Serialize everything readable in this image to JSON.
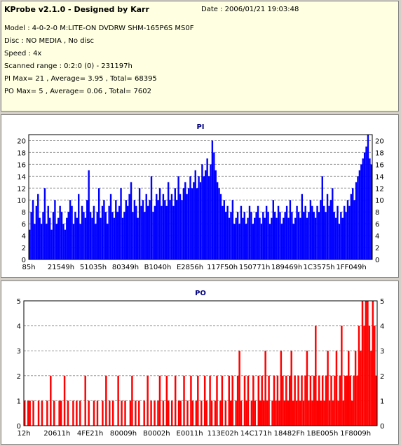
{
  "header": {
    "title": "KProbe v2.1.0 - Designed by Karr",
    "date": "Date : 2006/01/21 19:03:48",
    "model": "Model : 4-0-2-0 M:LITE-ON DVDRW SHM-165P6S MS0F",
    "disc": "Disc : NO MEDIA , No disc",
    "speed": "Speed : 4x",
    "scanned_range": "Scanned range : 0:2:0 (0) - 231197h",
    "pi_summary": "PI Max= 21 , Average= 3.95 , Total= 68395",
    "po_summary": "PO Max= 5 , Average= 0.06 , Total= 7602"
  },
  "colors": {
    "pi_bar": "#0000ff",
    "po_bar": "#ff0000",
    "title_text": "#000080",
    "grid": "#9a9a9a"
  },
  "chart_data": [
    {
      "id": "pi",
      "type": "bar",
      "title": "PI",
      "ylim": [
        0,
        21
      ],
      "y_ticks": [
        0,
        2,
        4,
        6,
        8,
        10,
        12,
        14,
        16,
        18,
        20
      ],
      "x_tick_labels": [
        "85h",
        "21549h",
        "51035h",
        "80349h",
        "B1040h",
        "E2856h",
        "117F50h",
        "150771h",
        "189469h",
        "1C3575h",
        "1FF049h"
      ],
      "grid": true,
      "series_color": "#0000ff",
      "values": [
        5,
        8,
        10,
        6,
        9,
        11,
        7,
        6,
        8,
        12,
        6,
        9,
        7,
        5,
        8,
        10,
        6,
        7,
        9,
        8,
        6,
        5,
        7,
        8,
        10,
        9,
        6,
        8,
        7,
        11,
        6,
        9,
        8,
        7,
        10,
        15,
        8,
        7,
        9,
        6,
        8,
        12,
        7,
        9,
        10,
        8,
        6,
        9,
        11,
        8,
        7,
        10,
        8,
        9,
        12,
        7,
        8,
        10,
        9,
        11,
        13,
        8,
        10,
        9,
        7,
        12,
        9,
        10,
        8,
        11,
        9,
        10,
        14,
        8,
        9,
        11,
        10,
        12,
        9,
        11,
        10,
        9,
        13,
        10,
        11,
        9,
        12,
        10,
        14,
        11,
        10,
        12,
        13,
        11,
        12,
        14,
        12,
        13,
        15,
        12,
        14,
        13,
        16,
        14,
        15,
        17,
        14,
        16,
        20,
        18,
        15,
        13,
        12,
        11,
        9,
        10,
        8,
        9,
        7,
        8,
        10,
        6,
        7,
        8,
        6,
        9,
        7,
        8,
        6,
        7,
        9,
        8,
        6,
        7,
        8,
        9,
        7,
        6,
        8,
        7,
        9,
        8,
        6,
        7,
        10,
        8,
        7,
        9,
        8,
        6,
        7,
        8,
        9,
        7,
        10,
        8,
        6,
        7,
        9,
        8,
        7,
        11,
        8,
        9,
        7,
        8,
        10,
        9,
        8,
        7,
        9,
        8,
        10,
        14,
        9,
        8,
        11,
        9,
        10,
        12,
        8,
        7,
        9,
        6,
        8,
        7,
        9,
        8,
        10,
        9,
        11,
        12,
        10,
        13,
        14,
        15,
        16,
        17,
        18,
        19,
        21,
        17,
        16
      ],
      "values_note": ""
    },
    {
      "id": "po",
      "type": "bar",
      "title": "PO",
      "ylim": [
        0,
        5
      ],
      "y_ticks": [
        0,
        1,
        2,
        3,
        4,
        5
      ],
      "x_tick_labels": [
        "12h",
        "20611h",
        "4FE21h",
        "80009h",
        "B0002h",
        "E0011h",
        "113E02h",
        "14C171h",
        "18482Fh",
        "1BE005h",
        "1F8009h"
      ],
      "grid": true,
      "series_color": "#ff0000",
      "values": [
        1,
        0,
        1,
        1,
        0,
        1,
        0,
        0,
        1,
        0,
        1,
        0,
        0,
        1,
        0,
        2,
        0,
        1,
        0,
        0,
        1,
        1,
        0,
        2,
        0,
        1,
        0,
        0,
        1,
        0,
        1,
        0,
        1,
        0,
        0,
        2,
        0,
        1,
        0,
        0,
        1,
        0,
        1,
        0,
        0,
        1,
        0,
        2,
        0,
        1,
        0,
        1,
        0,
        0,
        2,
        0,
        1,
        0,
        1,
        0,
        0,
        1,
        2,
        0,
        1,
        0,
        1,
        0,
        0,
        1,
        0,
        2,
        0,
        1,
        0,
        1,
        0,
        1,
        2,
        0,
        1,
        0,
        2,
        1,
        0,
        1,
        0,
        2,
        0,
        1,
        1,
        0,
        2,
        0,
        1,
        0,
        2,
        1,
        0,
        1,
        2,
        0,
        1,
        0,
        2,
        1,
        0,
        2,
        1,
        0,
        1,
        2,
        0,
        1,
        2,
        0,
        1,
        0,
        2,
        1,
        2,
        0,
        1,
        2,
        3,
        1,
        0,
        2,
        1,
        2,
        0,
        1,
        2,
        1,
        0,
        2,
        1,
        2,
        1,
        3,
        1,
        2,
        0,
        1,
        2,
        1,
        2,
        1,
        3,
        2,
        1,
        2,
        1,
        2,
        3,
        1,
        2,
        1,
        2,
        1,
        2,
        1,
        2,
        3,
        1,
        2,
        1,
        2,
        4,
        1,
        2,
        1,
        2,
        1,
        2,
        3,
        1,
        2,
        1,
        2,
        3,
        1,
        2,
        4,
        1,
        2,
        2,
        3,
        2,
        1,
        2,
        3,
        2,
        4,
        3,
        5,
        4,
        5,
        5,
        4,
        3,
        5,
        4,
        2
      ]
    }
  ]
}
